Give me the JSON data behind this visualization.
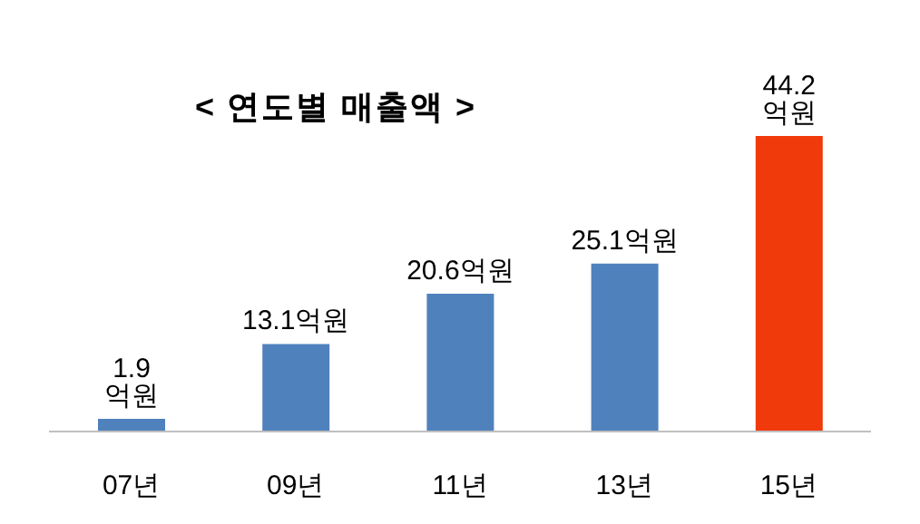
{
  "chart_data": {
    "type": "bar",
    "title": "< 연도별 매출액 >",
    "categories": [
      "07년",
      "09년",
      "11년",
      "13년",
      "15년"
    ],
    "values": [
      1.9,
      13.1,
      20.6,
      25.1,
      44.2
    ],
    "colors": [
      "#4f81bd",
      "#4f81bd",
      "#4f81bd",
      "#4f81bd",
      "#f03a0c"
    ],
    "value_labels": [
      "1.9 억원",
      "13.1억원",
      "20.6억원",
      "25.1억원",
      "44.2 억원"
    ],
    "grid": false,
    "legend": false
  }
}
